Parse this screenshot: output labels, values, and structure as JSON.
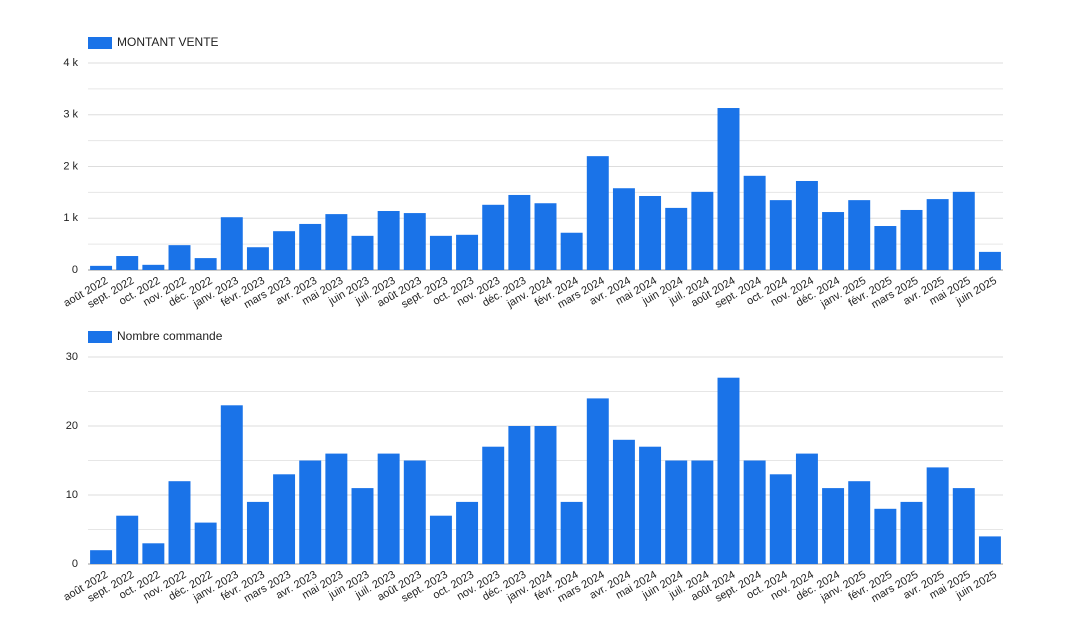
{
  "chart_data": [
    {
      "type": "bar",
      "series": [
        {
          "name": "MONTANT VENTE",
          "color": "#1a73e8",
          "values": [
            80,
            270,
            100,
            480,
            230,
            1020,
            440,
            750,
            890,
            1080,
            660,
            1140,
            1100,
            660,
            680,
            1260,
            1450,
            1290,
            720,
            2200,
            1580,
            1430,
            1200,
            1510,
            3130,
            1820,
            1350,
            1720,
            1120,
            1350,
            850,
            1160,
            1370,
            1510,
            350
          ]
        }
      ],
      "categories": [
        "août 2022",
        "sept. 2022",
        "oct. 2022",
        "nov. 2022",
        "déc. 2022",
        "janv. 2023",
        "févr. 2023",
        "mars 2023",
        "avr. 2023",
        "mai 2023",
        "juin 2023",
        "juil. 2023",
        "août 2023",
        "sept. 2023",
        "oct. 2023",
        "nov. 2023",
        "déc. 2023",
        "janv. 2024",
        "févr. 2024",
        "mars 2024",
        "avr. 2024",
        "mai 2024",
        "juin 2024",
        "juil. 2024",
        "août 2024",
        "sept. 2024",
        "oct. 2024",
        "nov. 2024",
        "déc. 2024",
        "janv. 2025",
        "févr. 2025",
        "mars 2025",
        "avr. 2025",
        "mai 2025",
        "juin 2025"
      ],
      "ylim": [
        0,
        4000
      ],
      "yticks": [
        0,
        {
          "value": 1000,
          "label": "1 k"
        },
        {
          "value": 2000,
          "label": "2 k"
        },
        {
          "value": 3000,
          "label": "3 k"
        },
        {
          "value": 4000,
          "label": "4 k"
        }
      ],
      "grid": true
    },
    {
      "type": "bar",
      "series": [
        {
          "name": "Nombre commande",
          "color": "#1a73e8",
          "values": [
            2,
            7,
            3,
            12,
            6,
            23,
            9,
            13,
            15,
            16,
            11,
            16,
            15,
            7,
            9,
            17,
            20,
            20,
            9,
            24,
            18,
            17,
            15,
            15,
            27,
            15,
            13,
            16,
            11,
            12,
            8,
            9,
            14,
            11,
            4
          ]
        }
      ],
      "categories": [
        "août 2022",
        "sept. 2022",
        "oct. 2022",
        "nov. 2022",
        "déc. 2022",
        "janv. 2023",
        "févr. 2023",
        "mars 2023",
        "avr. 2023",
        "mai 2023",
        "juin 2023",
        "juil. 2023",
        "août 2023",
        "sept. 2023",
        "oct. 2023",
        "nov. 2023",
        "déc. 2023",
        "janv. 2024",
        "févr. 2024",
        "mars 2024",
        "avr. 2024",
        "mai 2024",
        "juin 2024",
        "juil. 2024",
        "août 2024",
        "sept. 2024",
        "oct. 2024",
        "nov. 2024",
        "déc. 2024",
        "janv. 2025",
        "févr. 2025",
        "mars 2025",
        "avr. 2025",
        "mai 2025",
        "juin 2025"
      ],
      "ylim": [
        0,
        30
      ],
      "yticks": [
        0,
        10,
        20,
        30
      ],
      "grid": true
    }
  ]
}
